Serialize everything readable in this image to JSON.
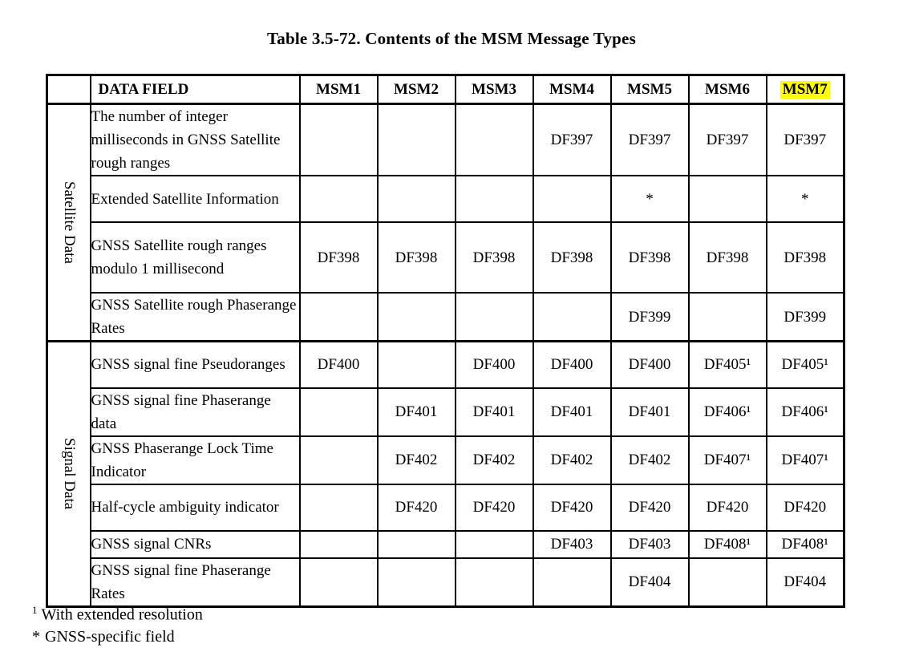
{
  "page": {
    "background": "#ffffff",
    "text_color": "#000000"
  },
  "title": "Table 3.5-72. Contents of the MSM Message Types",
  "table": {
    "columns": [
      "DATA FIELD",
      "MSM1",
      "MSM2",
      "MSM3",
      "MSM4",
      "MSM5",
      "MSM6",
      "MSM7"
    ],
    "highlighted_column": "MSM7",
    "highlight_color": "#ffff00",
    "sections": [
      {
        "label": "Satellite Data",
        "rows": [
          {
            "field": "The number of integer milliseconds in GNSS Satellite rough ranges",
            "values": [
              "",
              "",
              "",
              "DF397",
              "DF397",
              "DF397",
              "DF397"
            ]
          },
          {
            "field": "Extended Satellite Information",
            "values": [
              "",
              "",
              "",
              "",
              "*",
              "",
              "*"
            ]
          },
          {
            "field": "GNSS Satellite rough ranges modulo 1 millisecond",
            "values": [
              "DF398",
              "DF398",
              "DF398",
              "DF398",
              "DF398",
              "DF398",
              "DF398"
            ]
          },
          {
            "field": "GNSS Satellite rough Phaserange Rates",
            "values": [
              "",
              "",
              "",
              "",
              "DF399",
              "",
              "DF399"
            ]
          }
        ]
      },
      {
        "label": "Signal Data",
        "rows": [
          {
            "field": "GNSS signal fine Pseudoranges",
            "values": [
              "DF400",
              "",
              "DF400",
              "DF400",
              "DF400",
              "DF405¹",
              "DF405¹"
            ]
          },
          {
            "field": "GNSS signal fine Phaserange data",
            "values": [
              "",
              "DF401",
              "DF401",
              "DF401",
              "DF401",
              "DF406¹",
              "DF406¹"
            ]
          },
          {
            "field": "GNSS Phaserange Lock Time Indicator",
            "values": [
              "",
              "DF402",
              "DF402",
              "DF402",
              "DF402",
              "DF407¹",
              "DF407¹"
            ]
          },
          {
            "field": "Half-cycle ambiguity indicator",
            "values": [
              "",
              "DF420",
              "DF420",
              "DF420",
              "DF420",
              "DF420",
              "DF420"
            ]
          },
          {
            "field": "GNSS signal CNRs",
            "values": [
              "",
              "",
              "",
              "DF403",
              "DF403",
              "DF408¹",
              "DF408¹"
            ]
          },
          {
            "field": "GNSS signal fine Phaserange Rates",
            "values": [
              "",
              "",
              "",
              "",
              "DF404",
              "",
              "DF404"
            ]
          }
        ]
      }
    ]
  },
  "footnotes": [
    {
      "marker": "1",
      "superscript": true,
      "text": "With extended resolution"
    },
    {
      "marker": "*",
      "superscript": false,
      "text": "GNSS-specific field"
    }
  ]
}
